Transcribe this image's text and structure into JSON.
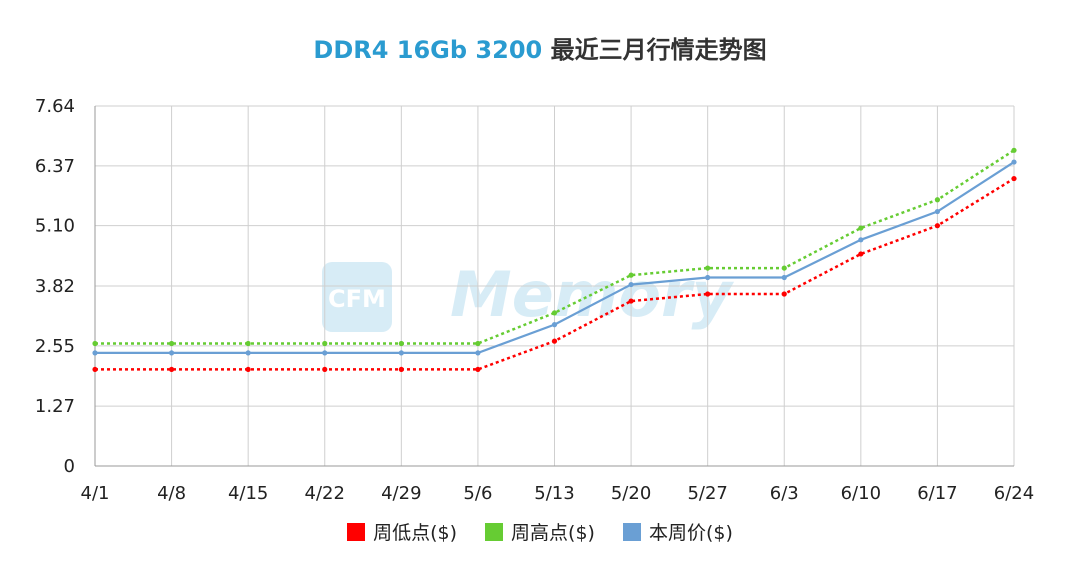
{
  "title": {
    "highlight": "DDR4 16Gb 3200",
    "rest": " 最近三月行情走势图"
  },
  "watermark": "CFM Memory",
  "chart_data": {
    "type": "line",
    "categories": [
      "4/1",
      "4/8",
      "4/15",
      "4/22",
      "4/29",
      "5/6",
      "5/13",
      "5/20",
      "5/27",
      "6/3",
      "6/10",
      "6/17",
      "6/24"
    ],
    "y_ticks": [
      "0",
      "1.27",
      "2.55",
      "3.82",
      "5.10",
      "6.37",
      "7.64"
    ],
    "ylim": [
      0,
      7.64
    ],
    "grid": true,
    "legend_position": "bottom",
    "series": [
      {
        "name": "周低点($)",
        "color": "#ff0000",
        "style": "dotted",
        "values": [
          2.05,
          2.05,
          2.05,
          2.05,
          2.05,
          2.05,
          2.65,
          3.5,
          3.65,
          3.65,
          4.5,
          5.1,
          6.1
        ]
      },
      {
        "name": "周高点($)",
        "color": "#66cc33",
        "style": "dotted",
        "values": [
          2.6,
          2.6,
          2.6,
          2.6,
          2.6,
          2.6,
          3.25,
          4.05,
          4.2,
          4.2,
          5.05,
          5.65,
          6.7
        ]
      },
      {
        "name": "本周价($)",
        "color": "#6a9fd4",
        "style": "solid",
        "values": [
          2.4,
          2.4,
          2.4,
          2.4,
          2.4,
          2.4,
          3.0,
          3.85,
          4.0,
          4.0,
          4.8,
          5.4,
          6.45
        ]
      }
    ]
  }
}
